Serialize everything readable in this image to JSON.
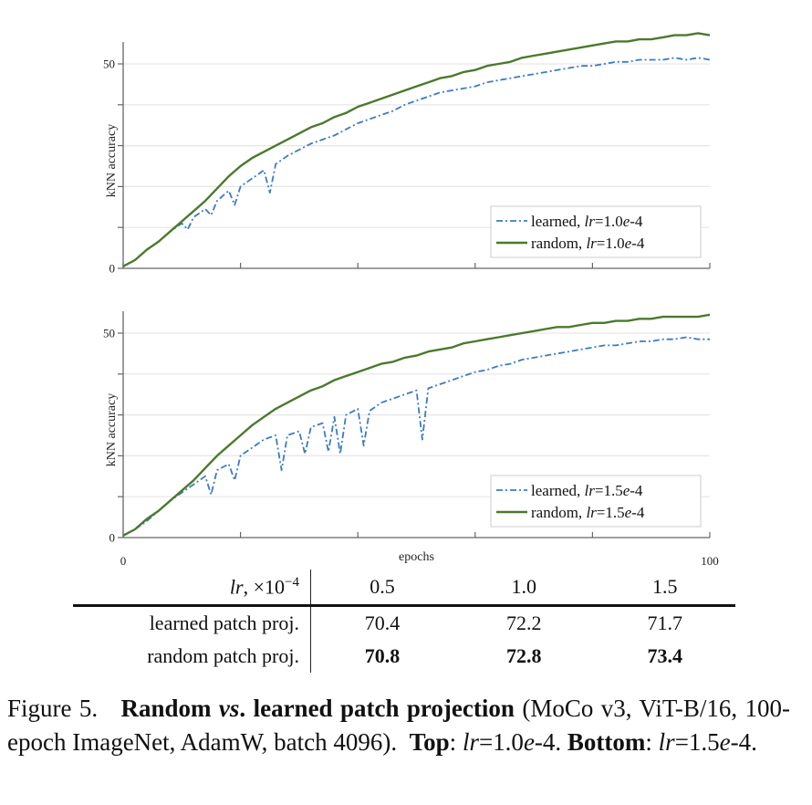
{
  "colors": {
    "learned": "#3a7cc4",
    "random": "#4a7a2c",
    "grid": "#e6e6e6",
    "axis": "#666666"
  },
  "chart_data": [
    {
      "type": "line",
      "id": "top",
      "xlabel": "epochs",
      "ylabel": "kNN accuracy",
      "xlim": [
        0,
        100
      ],
      "ylim": [
        0,
        55
      ],
      "xticks": [
        0,
        20,
        40,
        60,
        80,
        100
      ],
      "xtick_labels": [
        "0",
        "",
        "",
        "",
        "",
        "100"
      ],
      "yticks": [
        0,
        10,
        20,
        30,
        40,
        50
      ],
      "ytick_labels": [
        "0",
        "",
        "",
        "",
        "",
        "50"
      ],
      "grid": true,
      "legend_position": "bottom-right",
      "series": [
        {
          "name": "learned",
          "legend": "learned, lr=1.0e-4",
          "legend_prefix": "learned, ",
          "legend_suffix": "=1.0",
          "legend_e": "e",
          "legend_tail": "-4",
          "style": "dashdot",
          "x": [
            0,
            2,
            4,
            6,
            8,
            10,
            11,
            12,
            14,
            15,
            16,
            18,
            19,
            20,
            22,
            24,
            25,
            26,
            28,
            30,
            32,
            34,
            36,
            38,
            40,
            42,
            44,
            46,
            48,
            50,
            52,
            54,
            56,
            58,
            60,
            62,
            64,
            66,
            68,
            70,
            72,
            74,
            76,
            78,
            80,
            82,
            84,
            86,
            88,
            90,
            92,
            94,
            96,
            98,
            100
          ],
          "y": [
            0.5,
            2,
            4.5,
            6.5,
            9,
            11,
            9.5,
            12.5,
            14.5,
            13,
            16.5,
            19,
            15.5,
            20,
            22,
            24,
            18.5,
            25.5,
            27.5,
            29,
            30.5,
            31.5,
            32.5,
            34,
            35.5,
            36.5,
            37.5,
            38.5,
            40,
            41,
            42,
            43,
            43.5,
            44,
            44.5,
            45.5,
            46,
            46.5,
            47,
            47.5,
            48,
            48.5,
            49,
            49.5,
            49.5,
            50,
            50.5,
            50.5,
            51,
            51,
            51,
            51.5,
            51,
            51.5,
            51
          ]
        },
        {
          "name": "random",
          "legend": "random, lr=1.0e-4",
          "legend_prefix": "random, ",
          "legend_suffix": "=1.0",
          "legend_e": "e",
          "legend_tail": "-4",
          "style": "solid",
          "x": [
            0,
            2,
            4,
            6,
            8,
            10,
            12,
            14,
            16,
            18,
            20,
            22,
            24,
            26,
            28,
            30,
            32,
            34,
            36,
            38,
            40,
            42,
            44,
            46,
            48,
            50,
            52,
            54,
            56,
            58,
            60,
            62,
            64,
            66,
            68,
            70,
            72,
            74,
            76,
            78,
            80,
            82,
            84,
            86,
            88,
            90,
            92,
            94,
            96,
            98,
            100
          ],
          "y": [
            0.5,
            2,
            4.5,
            6.5,
            9,
            11.5,
            14,
            16.5,
            19.5,
            22.5,
            25,
            27,
            28.5,
            30,
            31.5,
            33,
            34.5,
            35.5,
            37,
            38,
            39.5,
            40.5,
            41.5,
            42.5,
            43.5,
            44.5,
            45.5,
            46.5,
            47,
            48,
            48.5,
            49.5,
            50,
            50.5,
            51.5,
            52,
            52.5,
            53,
            53.5,
            54,
            54.5,
            55,
            55.5,
            55.5,
            56,
            56,
            56.5,
            57,
            57,
            57.5,
            57
          ]
        }
      ]
    },
    {
      "type": "line",
      "id": "bottom",
      "xlabel": "epochs",
      "ylabel": "kNN accuracy",
      "xlim": [
        0,
        100
      ],
      "ylim": [
        0,
        55
      ],
      "xticks": [
        0,
        20,
        40,
        60,
        80,
        100
      ],
      "xtick_labels": [
        "0",
        "",
        "",
        "",
        "",
        "100"
      ],
      "yticks": [
        0,
        10,
        20,
        30,
        40,
        50
      ],
      "ytick_labels": [
        "0",
        "",
        "",
        "",
        "",
        "50"
      ],
      "grid": true,
      "legend_position": "bottom-right",
      "series": [
        {
          "name": "learned",
          "legend": "learned, lr=1.5e-4",
          "legend_prefix": "learned, ",
          "legend_suffix": "=1.5",
          "legend_e": "e",
          "legend_tail": "-4",
          "style": "dashdot",
          "x": [
            0,
            2,
            4,
            6,
            8,
            10,
            12,
            14,
            15,
            16,
            18,
            19,
            20,
            22,
            24,
            26,
            27,
            28,
            30,
            31,
            32,
            34,
            35,
            36,
            37,
            38,
            40,
            41,
            42,
            44,
            46,
            48,
            50,
            51,
            52,
            54,
            55,
            56,
            58,
            60,
            62,
            64,
            66,
            68,
            70,
            72,
            74,
            76,
            78,
            80,
            82,
            84,
            86,
            88,
            90,
            92,
            94,
            96,
            98,
            100
          ],
          "y": [
            0.5,
            2,
            4,
            6.5,
            9,
            11,
            13,
            15,
            10.5,
            16.5,
            18,
            14,
            20,
            22,
            24,
            25,
            16.5,
            25,
            26,
            20.5,
            27,
            28,
            21,
            29.5,
            20.5,
            30,
            31.5,
            22.5,
            31,
            33,
            34,
            35,
            36,
            24,
            36.5,
            37.5,
            38,
            38.5,
            39.5,
            40.5,
            41,
            42,
            42.5,
            43.5,
            44,
            44.5,
            45,
            45.5,
            46,
            46.5,
            47,
            47,
            47.5,
            48,
            48,
            48.5,
            48.5,
            49,
            48.5,
            48.5
          ]
        },
        {
          "name": "random",
          "legend": "random, lr=1.5e-4",
          "legend_prefix": "random, ",
          "legend_suffix": "=1.5",
          "legend_e": "e",
          "legend_tail": "-4",
          "style": "solid",
          "x": [
            0,
            2,
            4,
            6,
            8,
            10,
            12,
            14,
            16,
            18,
            20,
            22,
            24,
            26,
            28,
            30,
            32,
            34,
            36,
            38,
            40,
            42,
            44,
            46,
            48,
            50,
            52,
            54,
            56,
            58,
            60,
            62,
            64,
            66,
            68,
            70,
            72,
            74,
            76,
            78,
            80,
            82,
            84,
            86,
            88,
            90,
            92,
            94,
            96,
            98,
            100
          ],
          "y": [
            0.5,
            2,
            4.5,
            6.5,
            9,
            11.5,
            14,
            17,
            20,
            22.5,
            25,
            27.5,
            29.5,
            31.5,
            33,
            34.5,
            36,
            37,
            38.5,
            39.5,
            40.5,
            41.5,
            42.5,
            43,
            44,
            44.5,
            45.5,
            46,
            46.5,
            47.5,
            48,
            48.5,
            49,
            49.5,
            50,
            50.5,
            51,
            51.5,
            51.5,
            52,
            52.5,
            52.5,
            53,
            53,
            53.5,
            53.5,
            54,
            54,
            54,
            54,
            54.5
          ]
        }
      ]
    }
  ],
  "table": {
    "header_label_italic": "lr",
    "header_label_rest": ", ×10",
    "header_label_sup": "−4",
    "columns": [
      "0.5",
      "1.0",
      "1.5"
    ],
    "rows": [
      {
        "label": "learned patch proj.",
        "values": [
          "70.4",
          "72.2",
          "71.7"
        ],
        "bold": false
      },
      {
        "label": "random patch proj.",
        "values": [
          "70.8",
          "72.8",
          "73.4"
        ],
        "bold": true
      }
    ]
  },
  "caption": {
    "figure_label": "Figure 5.",
    "title_bold_1": "Random ",
    "title_italic_bold": "vs",
    "title_bold_2": ". learned patch projection",
    "text_1": " (MoCo v3, ViT-B/16, 100-epoch ImageNet, AdamW, batch 4096). ",
    "top_label": "Top",
    "colon_1": ": ",
    "lr_italic_1": "lr",
    "top_value": "=1.0",
    "e_1": "e",
    "top_tail": "-4. ",
    "bottom_label": "Bottom",
    "colon_2": ": ",
    "lr_italic_2": "lr",
    "bottom_value": "=1.5",
    "e_2": "e",
    "bottom_tail": "-4."
  }
}
